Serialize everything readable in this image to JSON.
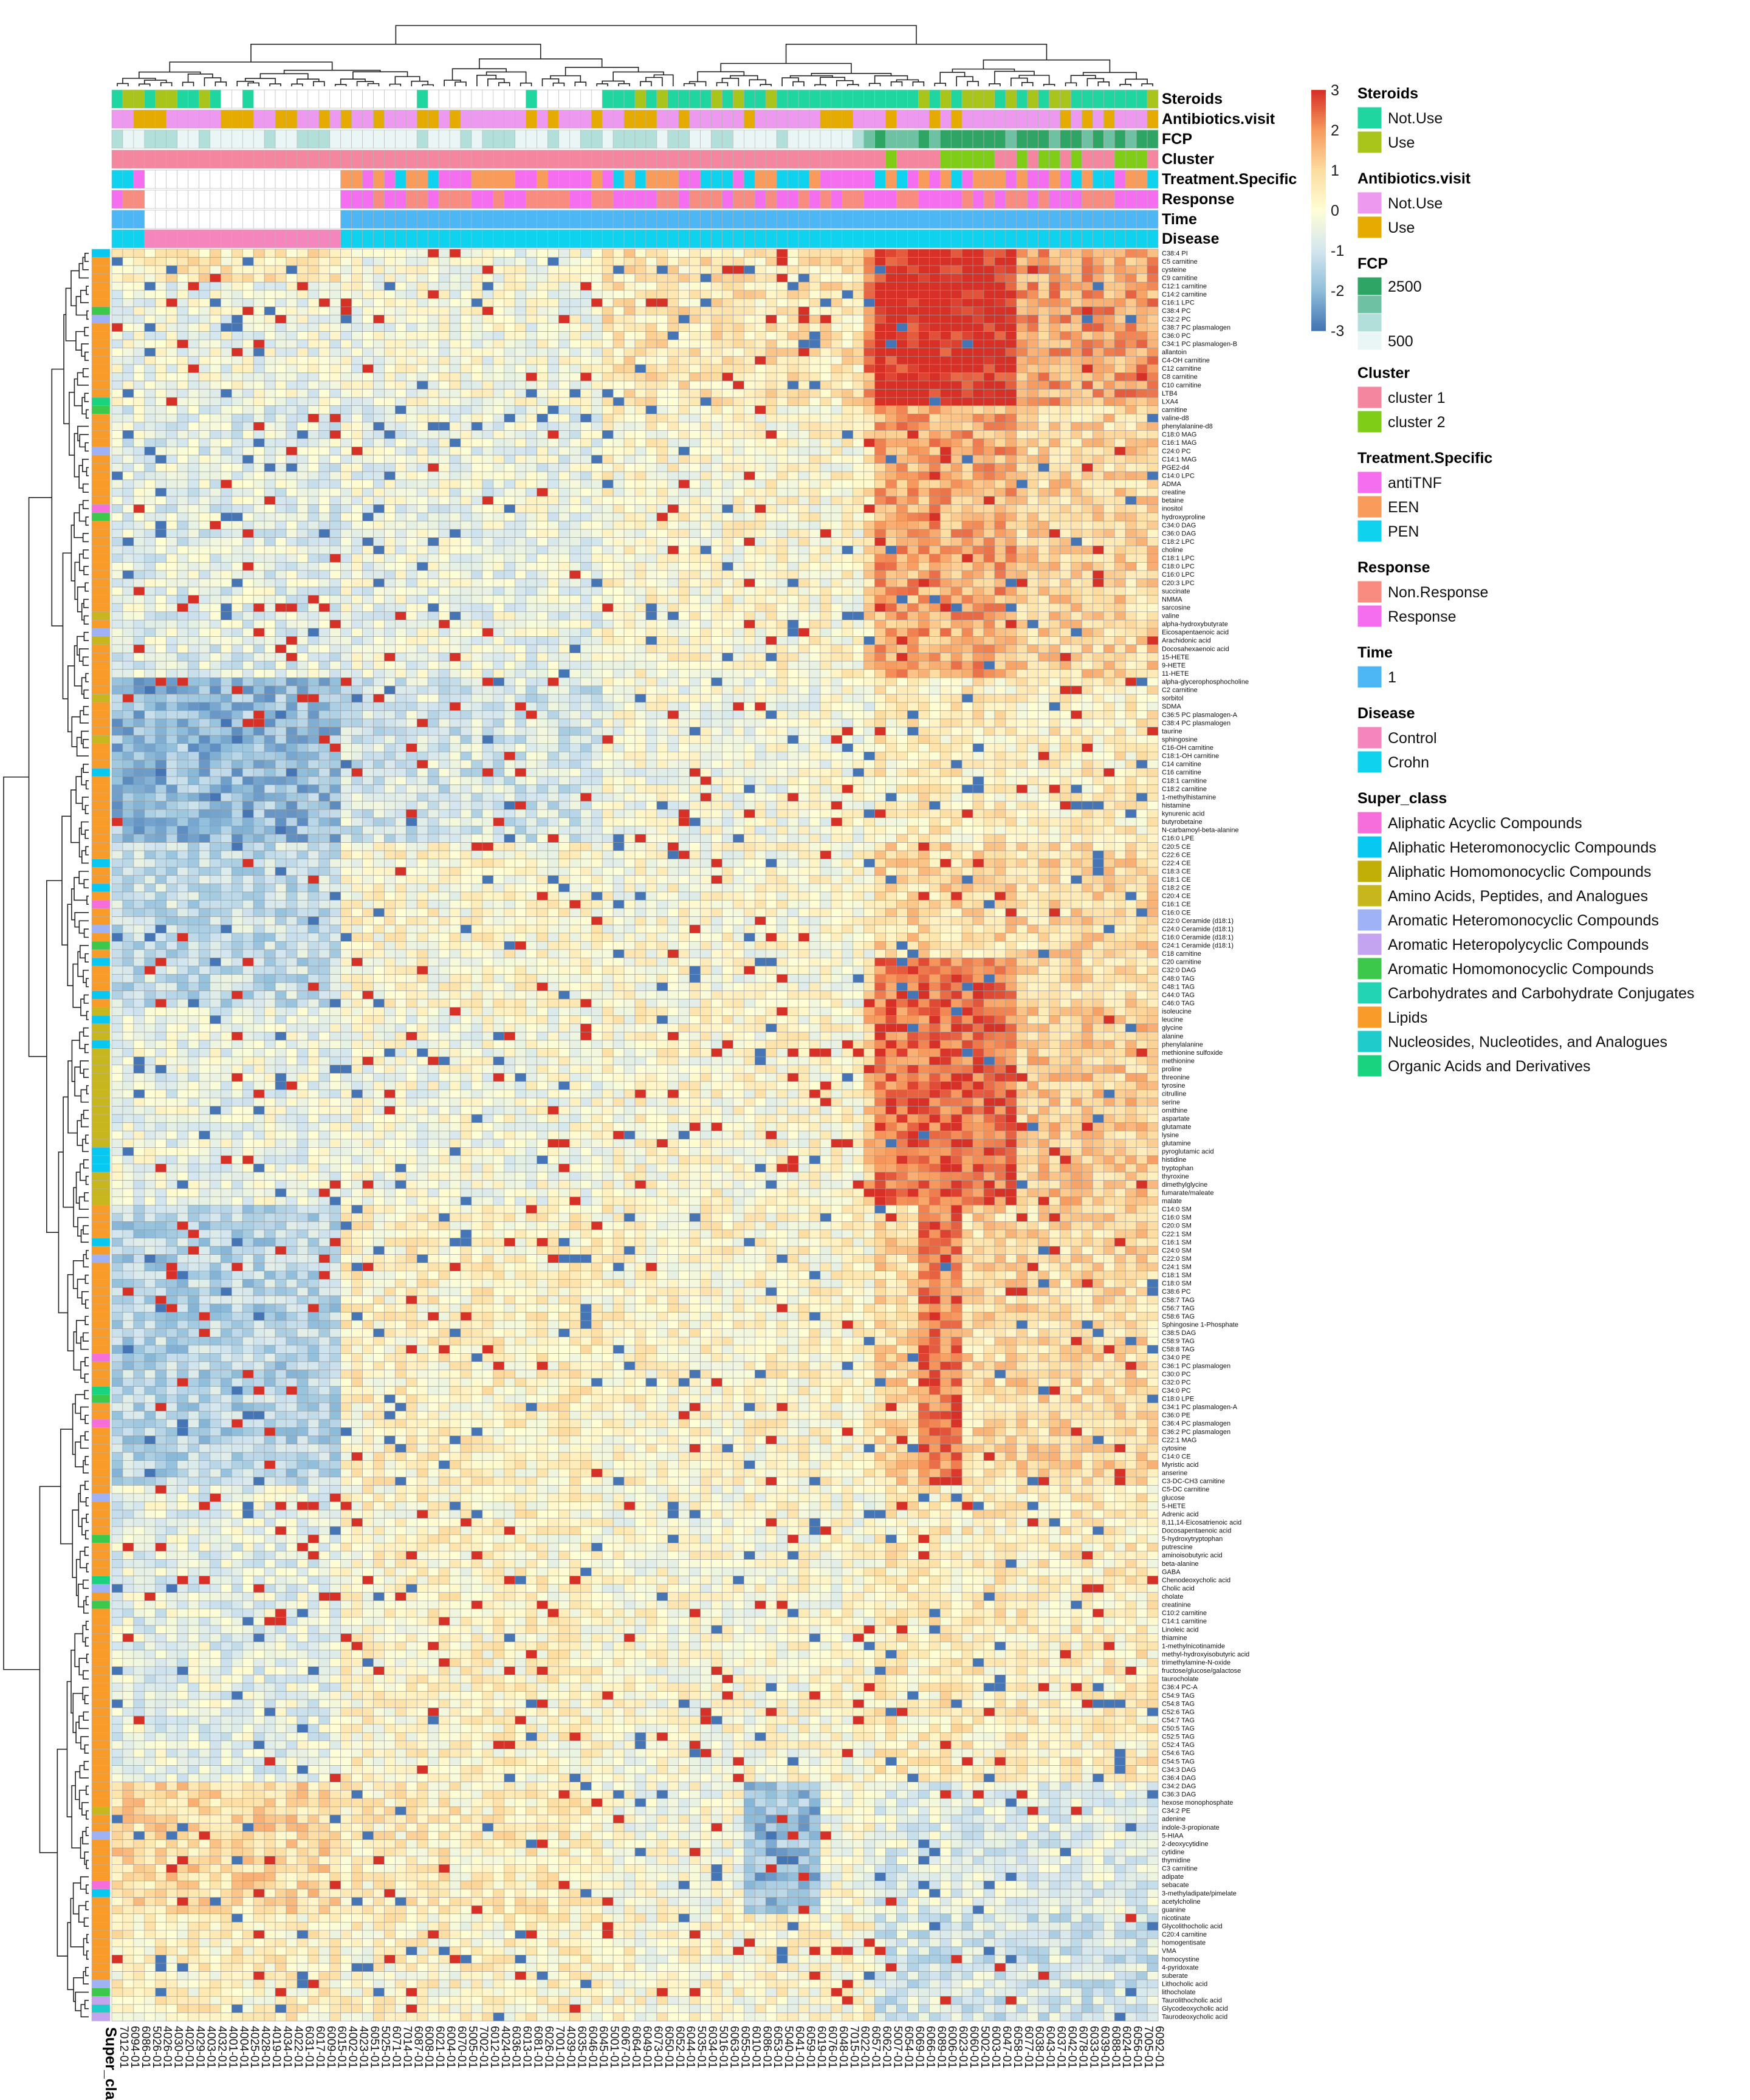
{
  "chart_data": {
    "type": "heatmap",
    "title": "",
    "row_labels": [
      "C38:4 PI",
      "C5 carnitine",
      "cysteine",
      "C9 carnitine",
      "C12:1 carnitine",
      "C14:2 carnitine",
      "C16:1 LPC",
      "C38:4 PC",
      "C32:2 PC",
      "C38:7 PC plasmalogen",
      "C36:0 PC",
      "C34:1 PC plasmalogen-B",
      "allantoin",
      "C4-OH carnitine",
      "C12 carnitine",
      "C8 carnitine",
      "C10 carnitine",
      "LTB4",
      "LXA4",
      "carnitine",
      "valine-d8",
      "phenylalanine-d8",
      "C18:0 MAG",
      "C16:1 MAG",
      "C24:0 PC",
      "C14:1 MAG",
      "PGE2-d4",
      "C14:0 LPC",
      "ADMA",
      "creatine",
      "betaine",
      "inositol",
      "hydroxyproline",
      "C34:0 DAG",
      "C36:0 DAG",
      "C18:2 LPC",
      "choline",
      "C18:1 LPC",
      "C18:0 LPC",
      "C16:0 LPC",
      "C20:3 LPC",
      "succinate",
      "NMMA",
      "sarcosine",
      "valine",
      "alpha-hydroxybutyrate",
      "Eicosapentaenoic acid",
      "Arachidonic acid",
      "Docosahexaenoic acid",
      "15-HETE",
      "9-HETE",
      "11-HETE",
      "alpha-glycerophosphocholine",
      "C2 carnitine",
      "sorbitol",
      "SDMA",
      "C36:5 PC plasmalogen-A",
      "C38:4 PC plasmalogen",
      "taurine",
      "sphingosine",
      "C16-OH carnitine",
      "C18:1-OH carnitine",
      "C14 carnitine",
      "C16 carnitine",
      "C18:1 carnitine",
      "C18:2 carnitine",
      "1-methylhistamine",
      "histamine",
      "kynurenic acid",
      "butyrobetaine",
      "N-carbamoyl-beta-alanine",
      "C16:0 LPE",
      "C20:5 CE",
      "C22:6 CE",
      "C22:4 CE",
      "C18:3 CE",
      "C18:1 CE",
      "C18:2 CE",
      "C20:4 CE",
      "C16:1 CE",
      "C16:0 CE",
      "C22:0 Ceramide (d18:1)",
      "C24:0 Ceramide (d18:1)",
      "C16:0 Ceramide (d18:1)",
      "C24:1 Ceramide (d18:1)",
      "C18 carnitine",
      "C20 carnitine",
      "C32:0 DAG",
      "C48:0 TAG",
      "C48:1 TAG",
      "C44:0 TAG",
      "C46:0 TAG",
      "isoleucine",
      "leucine",
      "glycine",
      "alanine",
      "phenylalanine",
      "methionine sulfoxide",
      "methionine",
      "proline",
      "threonine",
      "tyrosine",
      "citrulline",
      "serine",
      "ornithine",
      "aspartate",
      "glutamate",
      "lysine",
      "glutamine",
      "pyroglutamic acid",
      "histidine",
      "tryptophan",
      "thyroxine",
      "dimethylglycine",
      "fumarate/maleate",
      "malate",
      "C14:0 SM",
      "C16:0 SM",
      "C20:0 SM",
      "C22:1 SM",
      "C16:1 SM",
      "C24:0 SM",
      "C22:0 SM",
      "C24:1 SM",
      "C18:1 SM",
      "C18:0 SM",
      "C38:6 PC",
      "C58:7 TAG",
      "C56:7 TAG",
      "C58:6 TAG",
      "Sphingosine 1-Phosphate",
      "C38:5 DAG",
      "C58:9 TAG",
      "C58:8 TAG",
      "C34:0 PE",
      "C36:1 PC plasmalogen",
      "C30:0 PC",
      "C32:0 PC",
      "C34:0 PC",
      "C18:0 LPE",
      "C34:1 PC plasmalogen-A",
      "C36:0 PE",
      "C36:4 PC plasmalogen",
      "C36:2 PC plasmalogen",
      "C22:1 MAG",
      "cytosine",
      "C14:0 CE",
      "Myristic acid",
      "anserine",
      "C3-DC-CH3 carnitine",
      "C5-DC carnitine",
      "glucose",
      "5-HETE",
      "Adrenic acid",
      "8,11,14-Eicosatrienoic acid",
      "Docosapentaenoic acid",
      "5-hydroxytryptophan",
      "putrescine",
      "aminoisobutyric acid",
      "beta-alanine",
      "GABA",
      "Chenodeoxycholic acid",
      "Cholic acid",
      "cholate",
      "creatinine",
      "C10:2 carnitine",
      "C14:1 carnitine",
      "Linoleic acid",
      "thiamine",
      "1-methylnicotinamide",
      "methyl-hydroxyisobutyric acid",
      "trimethylamine-N-oxide",
      "fructose/glucose/galactose",
      "taurocholate",
      "C36:4 PC-A",
      "C54:9 TAG",
      "C54:8 TAG",
      "C52:6 TAG",
      "C54:7 TAG",
      "C50:5 TAG",
      "C52:5 TAG",
      "C52:4 TAG",
      "C54:6 TAG",
      "C54:5 TAG",
      "C34:3 DAG",
      "C36:4 DAG",
      "C34:2 DAG",
      "C36:3 DAG",
      "hexose monophosphate",
      "C34:2 PE",
      "adenine",
      "indole-3-propionate",
      "5-HIAA",
      "2-deoxycytidine",
      "cytidine",
      "thymidine",
      "C3 carnitine",
      "adipate",
      "sebacate",
      "3-methyladipate/pimelate",
      "acetylcholine",
      "guanine",
      "nicotinate",
      "Glycolithocholic acid",
      "C20:4 carnitine",
      "homogentisate",
      "VMA",
      "homocystine",
      "4-pyridoxate",
      "suberate",
      "Lithocholic acid",
      "lithocholate",
      "Taurolithocholic acid",
      "Glycodeoxycholic acid",
      "Taurodeoxycholic acid"
    ],
    "column_labels": [
      "7012-01",
      "6094-01",
      "6086-01",
      "5026-01",
      "4026-01",
      "4030-01",
      "4020-01",
      "4029-01",
      "4003-01",
      "4032-01",
      "4001-01",
      "4004-01",
      "4025-01",
      "4028-01",
      "4019-01",
      "4034-01",
      "4022-01",
      "6031-01",
      "6017-01",
      "6009-01",
      "6015-01",
      "4002-01",
      "4023-01",
      "6051-01",
      "5025-01",
      "6071-01",
      "7014-01",
      "6087-01",
      "6008-01",
      "6021-01",
      "6004-01",
      "6070-01",
      "5005-01",
      "7002-01",
      "6012-01",
      "4024-01",
      "6036-01",
      "6013-01",
      "6081-01",
      "6026-01",
      "7001-01",
      "4039-01",
      "6035-01",
      "6046-01",
      "6045-01",
      "5001-01",
      "6067-01",
      "6064-01",
      "6049-01",
      "6073-01",
      "6050-01",
      "6052-01",
      "6044-01",
      "5035-01",
      "6034-01",
      "5016-01",
      "6063-01",
      "6055-01",
      "6010-01",
      "6086-01",
      "6053-01",
      "5040-01",
      "6041-01",
      "6059-01",
      "6019-01",
      "6076-01",
      "6048-01",
      "7015-01",
      "6022-01",
      "6057-01",
      "6062-01",
      "5007-01",
      "6054-01",
      "6069-01",
      "6066-01",
      "6089-01",
      "6006-01",
      "6023-01",
      "6060-01",
      "5002-01",
      "6003-01",
      "6047-01",
      "6058-01",
      "6077-01",
      "6038-01",
      "6043-01",
      "6037-01",
      "6042-01",
      "6078-01",
      "6033-01",
      "6039-01",
      "6088-01",
      "6024-01",
      "6056-01",
      "7005-01",
      "6092-01"
    ],
    "color_scale": {
      "min": -3,
      "max": 3,
      "ticks": [
        "3",
        "2",
        "1",
        "0",
        "-1",
        "-2",
        "-3"
      ],
      "low": "#4f79bf",
      "mid": "#fefed8",
      "high": "#d73027"
    },
    "annotation_tracks": [
      "Steroids",
      "Antibiotics.visit",
      "FCP",
      "Cluster",
      "Treatment.Specific",
      "Response",
      "Time",
      "Disease"
    ],
    "row_annotation_track": "Super_class",
    "clustering": {
      "rows": true,
      "columns": true
    }
  },
  "legend": {
    "scale_ticks": [
      "3",
      "2",
      "1",
      "0",
      "-1",
      "-2",
      "-3"
    ],
    "groups": [
      {
        "title": "Steroids",
        "items": [
          {
            "label": "Not.Use",
            "color": "#1fd6a0"
          },
          {
            "label": "Use",
            "color": "#a9c41a"
          }
        ]
      },
      {
        "title": "Antibiotics.visit",
        "items": [
          {
            "label": "Not.Use",
            "color": "#ee99f0"
          },
          {
            "label": "Use",
            "color": "#e5ab00"
          }
        ]
      },
      {
        "title": "FCP",
        "gradient": true,
        "items": [
          {
            "label": "2500",
            "color": "#2ea565"
          },
          {
            "label": "",
            "color": "#6fc1a4"
          },
          {
            "label": "",
            "color": "#b3dfdb"
          },
          {
            "label": "500",
            "color": "#eaf6f6"
          }
        ]
      },
      {
        "title": "Cluster",
        "items": [
          {
            "label": "cluster 1",
            "color": "#f4879f"
          },
          {
            "label": "cluster 2",
            "color": "#7fcd16"
          }
        ]
      },
      {
        "title": "Treatment.Specific",
        "items": [
          {
            "label": "antiTNF",
            "color": "#f66ef0"
          },
          {
            "label": "EEN",
            "color": "#f99b5a"
          },
          {
            "label": "PEN",
            "color": "#0fd2ef"
          }
        ]
      },
      {
        "title": "Response",
        "items": [
          {
            "label": "Non.Response",
            "color": "#f88c80"
          },
          {
            "label": "Response",
            "color": "#f66ef0"
          }
        ]
      },
      {
        "title": "Time",
        "items": [
          {
            "label": "1",
            "color": "#4db7f5"
          }
        ]
      },
      {
        "title": "Disease",
        "items": [
          {
            "label": "Control",
            "color": "#f586bd"
          },
          {
            "label": "Crohn",
            "color": "#0fd2ef"
          }
        ]
      },
      {
        "title": "Super_class",
        "items": [
          {
            "label": "Aliphatic Acyclic Compounds",
            "color": "#f66ed9"
          },
          {
            "label": "Aliphatic Heteromonocyclic Compounds",
            "color": "#07c8f0"
          },
          {
            "label": "Aliphatic Homomonocyclic Compounds",
            "color": "#c1ae06"
          },
          {
            "label": "Amino Acids, Peptides, and Analogues",
            "color": "#c8b61e"
          },
          {
            "label": "Aromatic Heteromonocyclic Compounds",
            "color": "#9fb2f5"
          },
          {
            "label": "Aromatic Heteropolycyclic Compounds",
            "color": "#c4a3f0"
          },
          {
            "label": "Aromatic Homomonocyclic Compounds",
            "color": "#3cc84a"
          },
          {
            "label": "Carbohydrates and Carbohydrate Conjugates",
            "color": "#22d3b4"
          },
          {
            "label": "Lipids",
            "color": "#f89b28"
          },
          {
            "label": "Nucleosides, Nucleotides, and Analogues",
            "color": "#1fcbcb"
          },
          {
            "label": "Organic Acids and Derivatives",
            "color": "#19d37f"
          }
        ]
      }
    ]
  }
}
